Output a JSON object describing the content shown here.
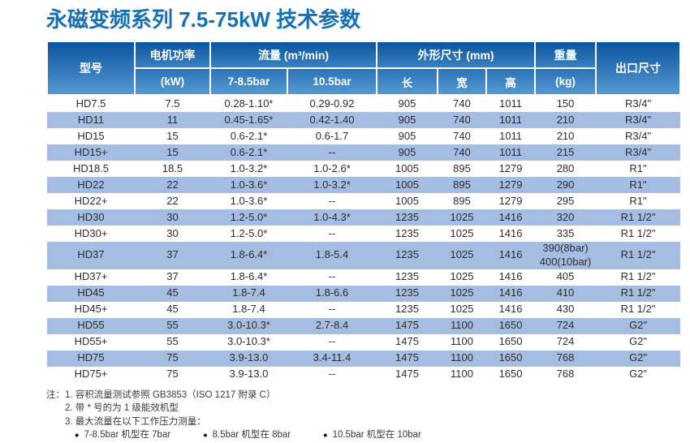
{
  "title": "永磁变频系列 7.5-75kW 技术参数",
  "colors": {
    "title_blue": "#1470b4",
    "header_gradient_top": "#0a55a0",
    "header_gradient_bottom": "#5598d1",
    "stripe_blue": "#a6bde2",
    "body_text": "#2d2d2d"
  },
  "table": {
    "header": {
      "model": "型号",
      "motor_power_line1": "电机功率",
      "motor_power_line2": "(kW)",
      "flow_group": "流量 (m³/min)",
      "flow_sub1": "7-8.5bar",
      "flow_sub2": "10.5bar",
      "dims_group": "外形尺寸 (mm)",
      "dim_length": "长",
      "dim_width": "宽",
      "dim_height": "高",
      "weight_line1": "重量",
      "weight_line2": "(kg)",
      "outlet": "出口尺寸"
    },
    "columns_order": [
      "model",
      "power",
      "flow_7_85bar",
      "flow_105bar",
      "length",
      "width",
      "height",
      "weight",
      "outlet"
    ],
    "rows": [
      {
        "model": "HD7.5",
        "power": "7.5",
        "flow_7_85bar": "0.28-1.10*",
        "flow_105bar": "0.29-0.92",
        "length": "905",
        "width": "740",
        "height": "1011",
        "weight": "150",
        "outlet": "R3/4\""
      },
      {
        "model": "HD11",
        "power": "11",
        "flow_7_85bar": "0.45-1.65*",
        "flow_105bar": "0.42-1.40",
        "length": "905",
        "width": "740",
        "height": "1011",
        "weight": "210",
        "outlet": "R3/4\""
      },
      {
        "model": "HD15",
        "power": "15",
        "flow_7_85bar": "0.6-2.1*",
        "flow_105bar": "0.6-1.7",
        "length": "905",
        "width": "740",
        "height": "1011",
        "weight": "210",
        "outlet": "R3/4\""
      },
      {
        "model": "HD15+",
        "power": "15",
        "flow_7_85bar": "0.6-2.1*",
        "flow_105bar": "--",
        "length": "905",
        "width": "740",
        "height": "1011",
        "weight": "215",
        "outlet": "R3/4\""
      },
      {
        "model": "HD18.5",
        "power": "18.5",
        "flow_7_85bar": "1.0-3.2*",
        "flow_105bar": "1.0-2.6*",
        "length": "1005",
        "width": "895",
        "height": "1279",
        "weight": "280",
        "outlet": "R1\""
      },
      {
        "model": "HD22",
        "power": "22",
        "flow_7_85bar": "1.0-3.6*",
        "flow_105bar": "1.0-3.2*",
        "length": "1005",
        "width": "895",
        "height": "1279",
        "weight": "290",
        "outlet": "R1\""
      },
      {
        "model": "HD22+",
        "power": "22",
        "flow_7_85bar": "1.0-3.6*",
        "flow_105bar": "--",
        "length": "1005",
        "width": "895",
        "height": "1279",
        "weight": "295",
        "outlet": "R1\""
      },
      {
        "model": "HD30",
        "power": "30",
        "flow_7_85bar": "1.2-5.0*",
        "flow_105bar": "1.0-4.3*",
        "length": "1235",
        "width": "1025",
        "height": "1416",
        "weight": "320",
        "outlet": "R1 1/2\""
      },
      {
        "model": "HD30+",
        "power": "30",
        "flow_7_85bar": "1.2-5.0*",
        "flow_105bar": "--",
        "length": "1235",
        "width": "1025",
        "height": "1416",
        "weight": "335",
        "outlet": "R1 1/2\""
      },
      {
        "model": "HD37",
        "power": "37",
        "flow_7_85bar": "1.8-6.4*",
        "flow_105bar": "1.8-5.4",
        "length": "1235",
        "width": "1025",
        "height": "1416",
        "weight": "390(8bar)\n400(10bar)",
        "outlet": "R1 1/2\""
      },
      {
        "model": "HD37+",
        "power": "37",
        "flow_7_85bar": "1.8-6.4*",
        "flow_105bar": "--",
        "length": "1235",
        "width": "1025",
        "height": "1416",
        "weight": "405",
        "outlet": "R1 1/2\""
      },
      {
        "model": "HD45",
        "power": "45",
        "flow_7_85bar": "1.8-7.4",
        "flow_105bar": "1.8-6.6",
        "length": "1235",
        "width": "1025",
        "height": "1416",
        "weight": "410",
        "outlet": "R1 1/2\""
      },
      {
        "model": "HD45+",
        "power": "45",
        "flow_7_85bar": "1.8-7.4",
        "flow_105bar": "--",
        "length": "1235",
        "width": "1025",
        "height": "1416",
        "weight": "430",
        "outlet": "R1 1/2\""
      },
      {
        "model": "HD55",
        "power": "55",
        "flow_7_85bar": "3.0-10.3*",
        "flow_105bar": "2.7-8.4",
        "length": "1475",
        "width": "1100",
        "height": "1650",
        "weight": "724",
        "outlet": "G2\""
      },
      {
        "model": "HD55+",
        "power": "55",
        "flow_7_85bar": "3.0-10.3*",
        "flow_105bar": "--",
        "length": "1475",
        "width": "1100",
        "height": "1650",
        "weight": "724",
        "outlet": "G2\""
      },
      {
        "model": "HD75",
        "power": "75",
        "flow_7_85bar": "3.9-13.0",
        "flow_105bar": "3.4-11.4",
        "length": "1475",
        "width": "1100",
        "height": "1650",
        "weight": "768",
        "outlet": "G2\""
      },
      {
        "model": "HD75+",
        "power": "75",
        "flow_7_85bar": "3.9-13.0",
        "flow_105bar": "--",
        "length": "1475",
        "width": "1100",
        "height": "1650",
        "weight": "768",
        "outlet": "G2\""
      }
    ]
  },
  "notes": {
    "label": "注：",
    "items": [
      "1. 容积流量测试参照 GB3853（ISO 1217 附录 C）",
      "2. 带 * 号的为 1 级能效机型",
      "3. 最大流量在以下工作压力测量："
    ],
    "bullet_glyph": "●",
    "bullets": [
      "7-8.5bar 机型在 7bar",
      "8.5bar 机型在 8bar",
      "10.5bar 机型在 10bar"
    ]
  }
}
